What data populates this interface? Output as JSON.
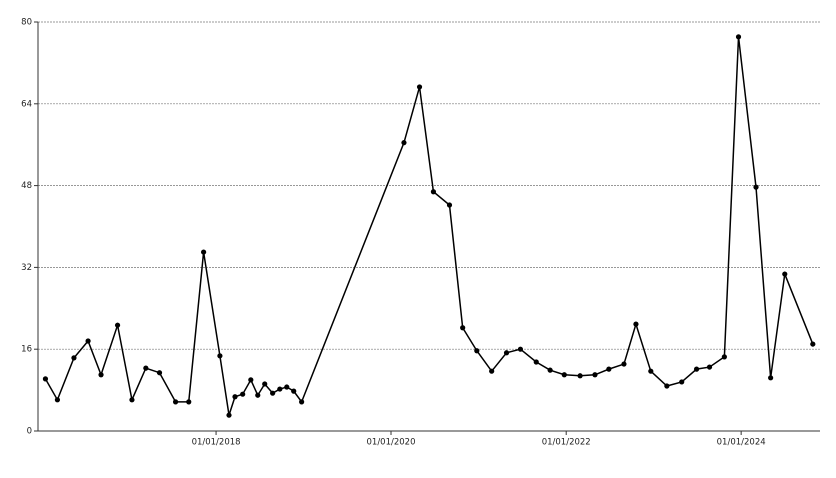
{
  "chart_data": {
    "type": "line",
    "color": "#000000",
    "grid": true,
    "xlim": [
      "2015-12-20",
      "2024-11-25"
    ],
    "xticks": [
      {
        "value": "2018-01-01",
        "label": "01/01/2018"
      },
      {
        "value": "2020-01-01",
        "label": "01/01/2020"
      },
      {
        "value": "2022-01-01",
        "label": "01/01/2022"
      },
      {
        "value": "2024-01-01",
        "label": "01/01/2024"
      }
    ],
    "ylim": [
      0,
      80
    ],
    "yticks": [
      0,
      16,
      32,
      48,
      64,
      80
    ],
    "x": [
      "2016-01-20",
      "2016-03-10",
      "2016-05-18",
      "2016-07-16",
      "2016-09-08",
      "2016-11-16",
      "2017-01-15",
      "2017-03-14",
      "2017-05-10",
      "2017-07-16",
      "2017-09-09",
      "2017-11-10",
      "2018-01-17",
      "2018-02-24",
      "2018-03-21",
      "2018-04-22",
      "2018-05-26",
      "2018-06-24",
      "2018-07-23",
      "2018-08-25",
      "2018-09-24",
      "2018-10-23",
      "2018-11-21",
      "2018-12-24",
      "2020-02-24",
      "2020-04-29",
      "2020-06-26",
      "2020-09-01",
      "2020-10-26",
      "2020-12-24",
      "2021-02-24",
      "2021-04-27",
      "2021-06-24",
      "2021-08-29",
      "2021-10-26",
      "2021-12-24",
      "2022-02-28",
      "2022-05-01",
      "2022-06-28",
      "2022-08-30",
      "2022-10-19",
      "2022-12-20",
      "2023-02-25",
      "2023-04-28",
      "2023-06-29",
      "2023-08-22",
      "2023-10-23",
      "2023-12-21",
      "2024-03-03",
      "2024-05-03",
      "2024-07-01",
      "2024-10-26"
    ],
    "values": [
      10.2,
      6.1,
      14.3,
      17.6,
      11.0,
      20.7,
      6.1,
      12.3,
      11.4,
      5.7,
      5.7,
      35.0,
      14.7,
      3.1,
      6.7,
      7.2,
      10.0,
      7.0,
      9.2,
      7.4,
      8.2,
      8.6,
      7.8,
      5.7,
      56.4,
      67.3,
      46.8,
      44.2,
      20.2,
      15.7,
      11.7,
      15.3,
      16.0,
      13.5,
      11.9,
      11.0,
      10.8,
      11.0,
      12.1,
      13.1,
      20.9,
      11.7,
      8.8,
      9.6,
      12.1,
      12.5,
      14.5,
      77.1,
      47.7,
      10.4,
      30.7,
      17.0
    ]
  }
}
